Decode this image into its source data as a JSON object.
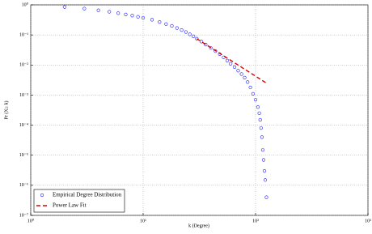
{
  "chart_data": {
    "type": "scatter",
    "xlabel": "k (Degree)",
    "ylabel": "Pr (X≥ k)",
    "xscale": "log",
    "yscale": "log",
    "grid": true,
    "legend": "lower left",
    "xlim": [
      1,
      1000
    ],
    "ylim": [
      1e-07,
      1
    ],
    "xticks": [
      {
        "value": 1,
        "label": "10⁰"
      },
      {
        "value": 10,
        "label": "10¹"
      },
      {
        "value": 100,
        "label": "10²"
      },
      {
        "value": 1000,
        "label": "10³"
      }
    ],
    "yticks": [
      {
        "value": 1e-07,
        "label": "10⁻⁷"
      },
      {
        "value": 1e-06,
        "label": "10⁻⁶"
      },
      {
        "value": 1e-05,
        "label": "10⁻⁵"
      },
      {
        "value": 0.0001,
        "label": "10⁻⁴"
      },
      {
        "value": 0.001,
        "label": "10⁻³"
      },
      {
        "value": 0.01,
        "label": "10⁻²"
      },
      {
        "value": 0.1,
        "label": "10⁻¹"
      },
      {
        "value": 1,
        "label": "10⁰"
      }
    ],
    "series": [
      {
        "name": "Empirical Degree Distribution",
        "color": "#1f1fff",
        "mode": "markers",
        "x": [
          2,
          3,
          4,
          5,
          6,
          7,
          8,
          9,
          10,
          12,
          14,
          16,
          18,
          20,
          22,
          24,
          26,
          28,
          30,
          33,
          36,
          40,
          44,
          48,
          52,
          56,
          60,
          65,
          70,
          75,
          80,
          85,
          90,
          95,
          100,
          105,
          108,
          110,
          112,
          114,
          116,
          118,
          120,
          122,
          125
        ],
        "values": [
          0.85,
          0.75,
          0.66,
          0.59,
          0.53,
          0.48,
          0.44,
          0.4,
          0.37,
          0.32,
          0.27,
          0.23,
          0.2,
          0.17,
          0.145,
          0.125,
          0.105,
          0.09,
          0.075,
          0.06,
          0.048,
          0.037,
          0.029,
          0.023,
          0.018,
          0.014,
          0.011,
          0.0085,
          0.0065,
          0.005,
          0.0038,
          0.0027,
          0.0018,
          0.0011,
          0.0007,
          0.0004,
          0.00025,
          0.00015,
          8e-05,
          4e-05,
          1.5e-05,
          7e-06,
          3e-06,
          1.5e-06,
          4e-07
        ]
      },
      {
        "name": "Power Law Fit",
        "color": "#dd0000",
        "mode": "dashed-line",
        "x": [
          30,
          125
        ],
        "values": [
          0.075,
          0.0025
        ]
      }
    ]
  }
}
